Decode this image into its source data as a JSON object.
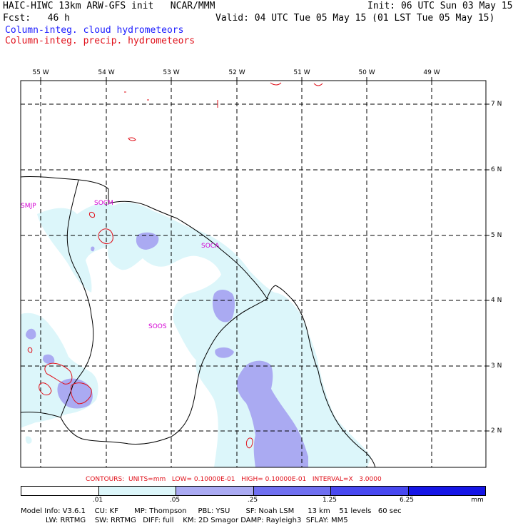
{
  "header": {
    "line1_left": "HAIC-HIWC 13km ARW-GFS init   NCAR/MMM",
    "line1_right": "Init: 06 UTC Sun 03 May 15",
    "line2_left": "Fcst:   46 h",
    "line2_right": "Valid: 04 UTC Tue 05 May 15 (01 LST Tue 05 May 15)",
    "legend_cloud": "Column-integ. cloud hydrometeors",
    "legend_precip": "Column-integ. precip. hydrometeors"
  },
  "map": {
    "lon_labels": [
      "55 W",
      "54 W",
      "53 W",
      "52 W",
      "51 W",
      "50 W",
      "49 W"
    ],
    "lat_labels": [
      "7 N",
      "6 N",
      "5 N",
      "4 N",
      "3 N",
      "2 N"
    ],
    "stations": [
      "SMJP",
      "SOCM",
      "SOCA",
      "SOOS"
    ]
  },
  "contour_info": "CONTOURS:  UNITS=mm   LOW= 0.10000E-01   HIGH= 0.10000E-01   INTERVAL=X   3.0000",
  "colorbar": {
    "labels": [
      ".01",
      ".05",
      ".25",
      "1.25",
      "6.25"
    ],
    "units": "mm",
    "colors": [
      "#ffffff",
      "#dcf6fa",
      "#aaaaf2",
      "#6f6ff0",
      "#4848f0",
      "#1515e6"
    ]
  },
  "footer": {
    "line1": "Model Info: V3.6.1    CU: KF       MP: Thompson     PBL: YSU       SF: Noah LSM      13 km    51 levels   60 sec",
    "line2": "           LW: RRTMG    SW: RRTMG   DIFF: full    KM: 2D Smagor DAMP: Rayleigh3  SFLAY: MM5"
  }
}
